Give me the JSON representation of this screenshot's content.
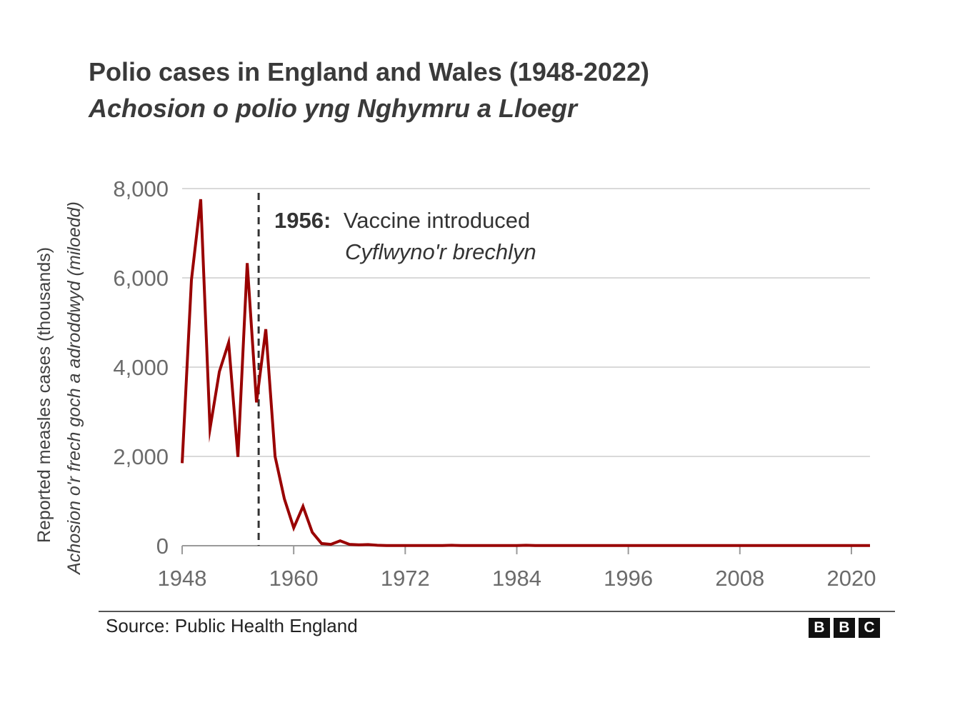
{
  "title": "Polio cases in England and Wales (1948-2022)",
  "subtitle": "Achosion o polio yng Nghymru a Lloegr",
  "source": "Source: Public Health England",
  "logo": {
    "letters": [
      "B",
      "B",
      "C"
    ],
    "name": "BBC"
  },
  "colors": {
    "series": "#990000",
    "grid": "#d9d9d9",
    "axis_text": "#6b6b6b",
    "marker": "#333333"
  },
  "chart_data": {
    "type": "line",
    "title": "Polio cases in England and Wales (1948-2022)",
    "ylabel": "Reported measles cases (thousands)",
    "ylabel_welsh": "Achosion o'r frech goch a adroddwyd (miloedd)",
    "xlabel": "",
    "xlim": [
      1948,
      2022
    ],
    "ylim": [
      0,
      8000
    ],
    "x_ticks": [
      1948,
      1960,
      1972,
      1984,
      1996,
      2008,
      2020
    ],
    "x_tick_labels": [
      "1948",
      "1960",
      "1972",
      "1984",
      "1996",
      "2008",
      "2020"
    ],
    "y_ticks": [
      0,
      2000,
      4000,
      6000,
      8000
    ],
    "y_tick_labels": [
      "0",
      "2,000",
      "4,000",
      "6,000",
      "8,000"
    ],
    "grid": true,
    "annotation": {
      "x": 1956,
      "bold": "1956:",
      "text": "Vaccine introduced",
      "text_welsh": "Cyflwyno'r brechlyn"
    },
    "series": [
      {
        "name": "Polio cases",
        "x": [
          1948,
          1949,
          1950,
          1951,
          1952,
          1953,
          1954,
          1955,
          1956,
          1957,
          1958,
          1959,
          1960,
          1961,
          1962,
          1963,
          1964,
          1965,
          1966,
          1967,
          1968,
          1969,
          1970,
          1971,
          1972,
          1973,
          1974,
          1975,
          1976,
          1977,
          1978,
          1979,
          1980,
          1981,
          1982,
          1983,
          1984,
          1985,
          1986,
          1987,
          1988,
          1989,
          1990,
          1991,
          1992,
          1993,
          1994,
          1995,
          1996,
          1997,
          1998,
          1999,
          2000,
          2001,
          2002,
          2003,
          2004,
          2005,
          2006,
          2007,
          2008,
          2009,
          2010,
          2011,
          2012,
          2013,
          2014,
          2015,
          2016,
          2017,
          2018,
          2019,
          2020,
          2021,
          2022
        ],
        "values": [
          1850,
          5950,
          7760,
          2620,
          3900,
          4550,
          1990,
          6330,
          3210,
          4850,
          2000,
          1050,
          400,
          880,
          300,
          50,
          30,
          110,
          30,
          20,
          25,
          10,
          5,
          5,
          5,
          5,
          5,
          5,
          5,
          10,
          5,
          5,
          5,
          5,
          5,
          5,
          5,
          10,
          5,
          5,
          5,
          5,
          5,
          5,
          5,
          5,
          5,
          5,
          5,
          5,
          5,
          5,
          5,
          5,
          5,
          5,
          5,
          5,
          5,
          5,
          5,
          5,
          5,
          5,
          5,
          5,
          5,
          5,
          5,
          5,
          5,
          5,
          5,
          5,
          5
        ]
      }
    ]
  }
}
